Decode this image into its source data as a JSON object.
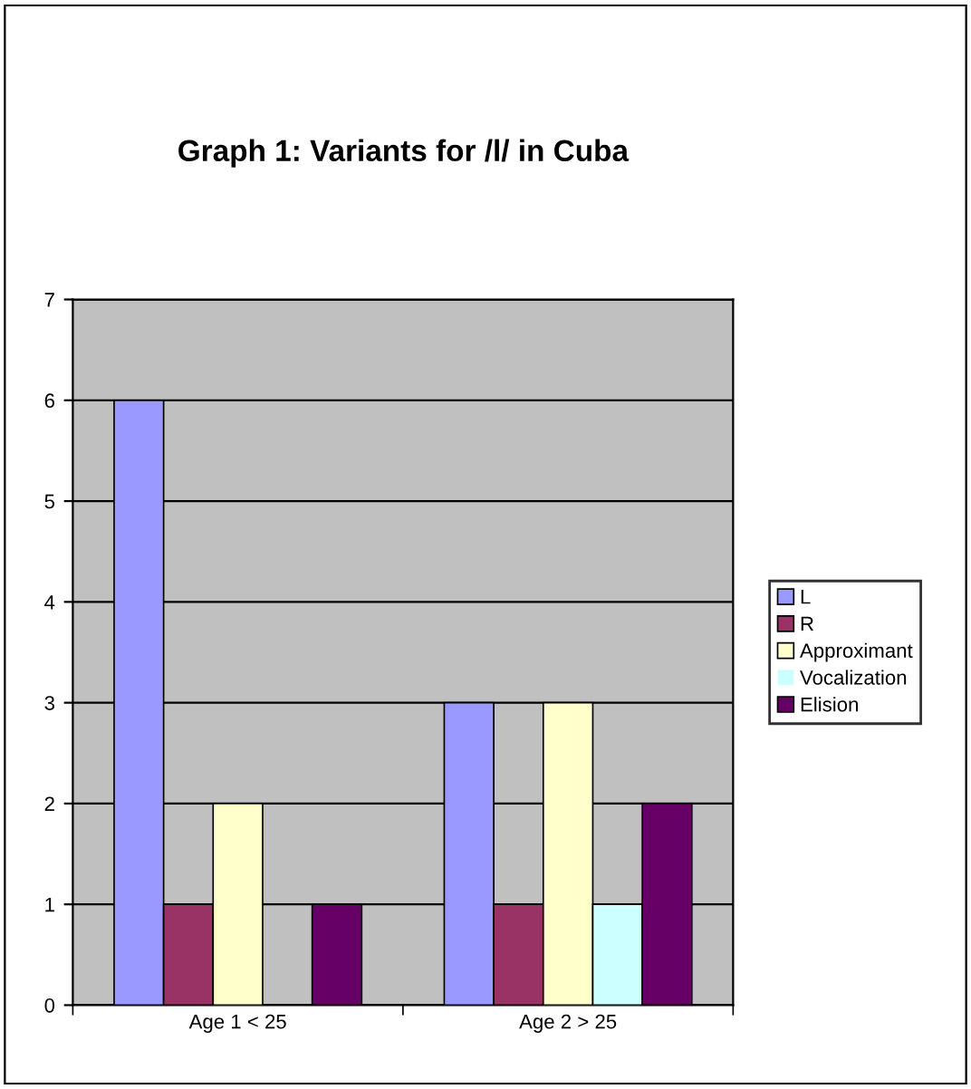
{
  "chart_data": {
    "type": "bar",
    "title": "Graph 1: Variants for /l/ in Cuba",
    "categories": [
      "Age 1 < 25",
      "Age 2 > 25"
    ],
    "series": [
      {
        "name": "L",
        "color": "#9999ff",
        "values": [
          6,
          3
        ]
      },
      {
        "name": "R",
        "color": "#993366",
        "values": [
          1,
          1
        ]
      },
      {
        "name": "Approximant",
        "color": "#ffffcc",
        "values": [
          2,
          3
        ]
      },
      {
        "name": "Vocalization",
        "color": "#ccffff",
        "values": [
          0,
          1
        ]
      },
      {
        "name": "Elision",
        "color": "#660066",
        "values": [
          1,
          2
        ]
      }
    ],
    "ylim": [
      0,
      7
    ],
    "yticks": [
      0,
      1,
      2,
      3,
      4,
      5,
      6,
      7
    ],
    "grid": "y",
    "legend": "right"
  }
}
